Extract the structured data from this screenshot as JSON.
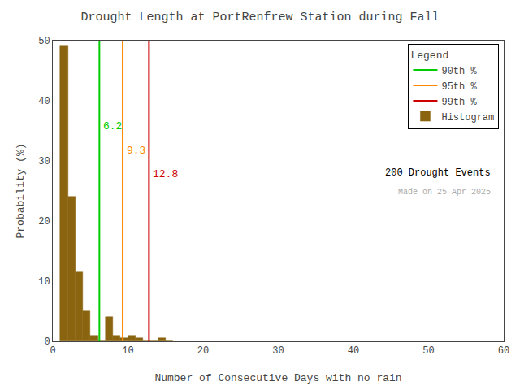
{
  "chart_data": {
    "type": "histogram",
    "title": "Drought Length at PortRenfrew Station during Fall",
    "x_label": "Number of Consecutive Days with no rain",
    "y_label": "Probability (%)",
    "name": "Histogram",
    "color": "#8B6410",
    "bins": [
      1,
      2,
      3,
      4,
      5,
      6,
      7,
      8,
      9,
      10,
      11,
      12,
      13,
      14,
      15,
      16
    ],
    "values": [
      49.0,
      24.0,
      11.5,
      5.0,
      1.0,
      0.0,
      4.0,
      1.0,
      0.5,
      1.0,
      0.5,
      0.0,
      0.0,
      0.5,
      0.0
    ],
    "lines": [
      {
        "name": "90th %",
        "color": "#00cc00",
        "x": 6.2
      },
      {
        "name": "95th %",
        "color": "#ff8800",
        "x": 9.3
      },
      {
        "name": "99th %",
        "color": "#cc0000",
        "x": 12.8
      }
    ],
    "annotations": [
      "200 Drought Events",
      "Made on 25 Apr 2025"
    ],
    "legend_title": "Legend",
    "legend": "upper right",
    "grid": false,
    "xlim": [
      0,
      60
    ],
    "ylim": [
      0,
      50
    ],
    "xticks": [
      0,
      10,
      20,
      30,
      40,
      50,
      60
    ],
    "yticks": [
      0,
      10,
      20,
      30,
      40,
      50
    ]
  }
}
